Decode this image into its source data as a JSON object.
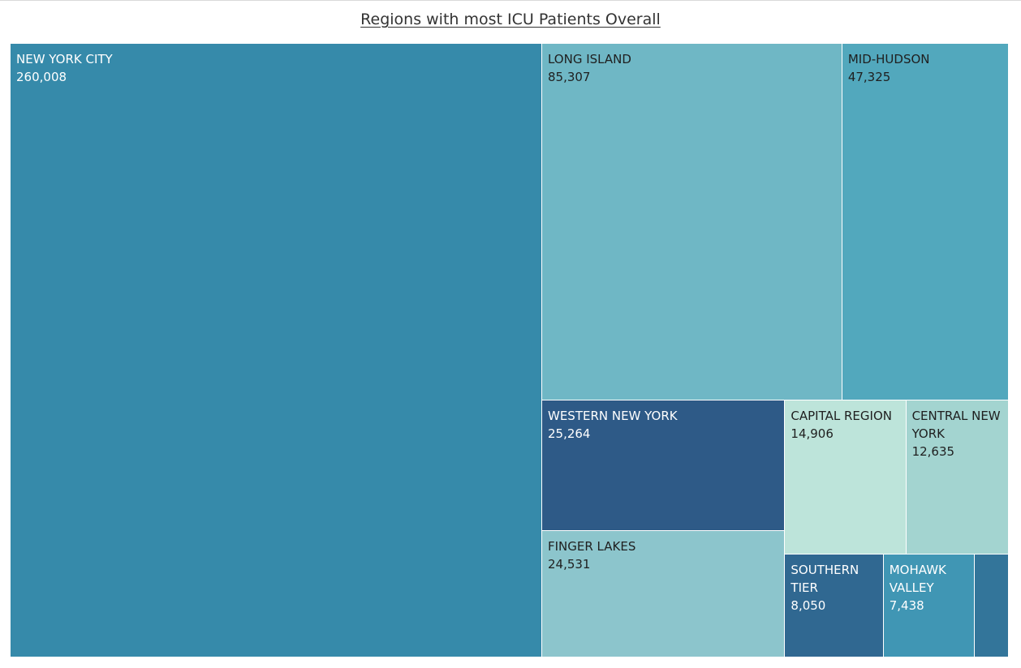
{
  "chart_data": {
    "type": "treemap",
    "title": "Regions with most ICU Patients Overall",
    "series": [
      {
        "name": "NEW YORK CITY",
        "value": 260008,
        "label": "260,008",
        "color": "#368aaa",
        "text_color": "#ffffff"
      },
      {
        "name": "LONG ISLAND",
        "value": 85307,
        "label": "85,307",
        "color": "#6fb7c5",
        "text_color": "#1f1f1f"
      },
      {
        "name": "MID-HUDSON",
        "value": 47325,
        "label": "47,325",
        "color": "#52a8bd",
        "text_color": "#1f1f1f"
      },
      {
        "name": "WESTERN NEW YORK",
        "value": 25264,
        "label": "25,264",
        "color": "#2e5a87",
        "text_color": "#ffffff"
      },
      {
        "name": "FINGER LAKES",
        "value": 24531,
        "label": "24,531",
        "color": "#8cc5cc",
        "text_color": "#1f1f1f"
      },
      {
        "name": "CAPITAL REGION",
        "value": 14906,
        "label": "14,906",
        "color": "#bde4da",
        "text_color": "#1f1f1f"
      },
      {
        "name": "CENTRAL NEW YORK",
        "value": 12635,
        "label": "12,635",
        "color": "#a3d4d0",
        "text_color": "#1f1f1f"
      },
      {
        "name": "SOUTHERN TIER",
        "value": 8050,
        "label": "8,050",
        "color": "#306891",
        "text_color": "#ffffff"
      },
      {
        "name": "MOHAWK VALLEY",
        "value": 7438,
        "label": "7,438",
        "color": "#4096b4",
        "text_color": "#ffffff"
      },
      {
        "name": "",
        "value": 2800,
        "label": "",
        "color": "#33759a",
        "text_color": "#ffffff"
      }
    ]
  }
}
